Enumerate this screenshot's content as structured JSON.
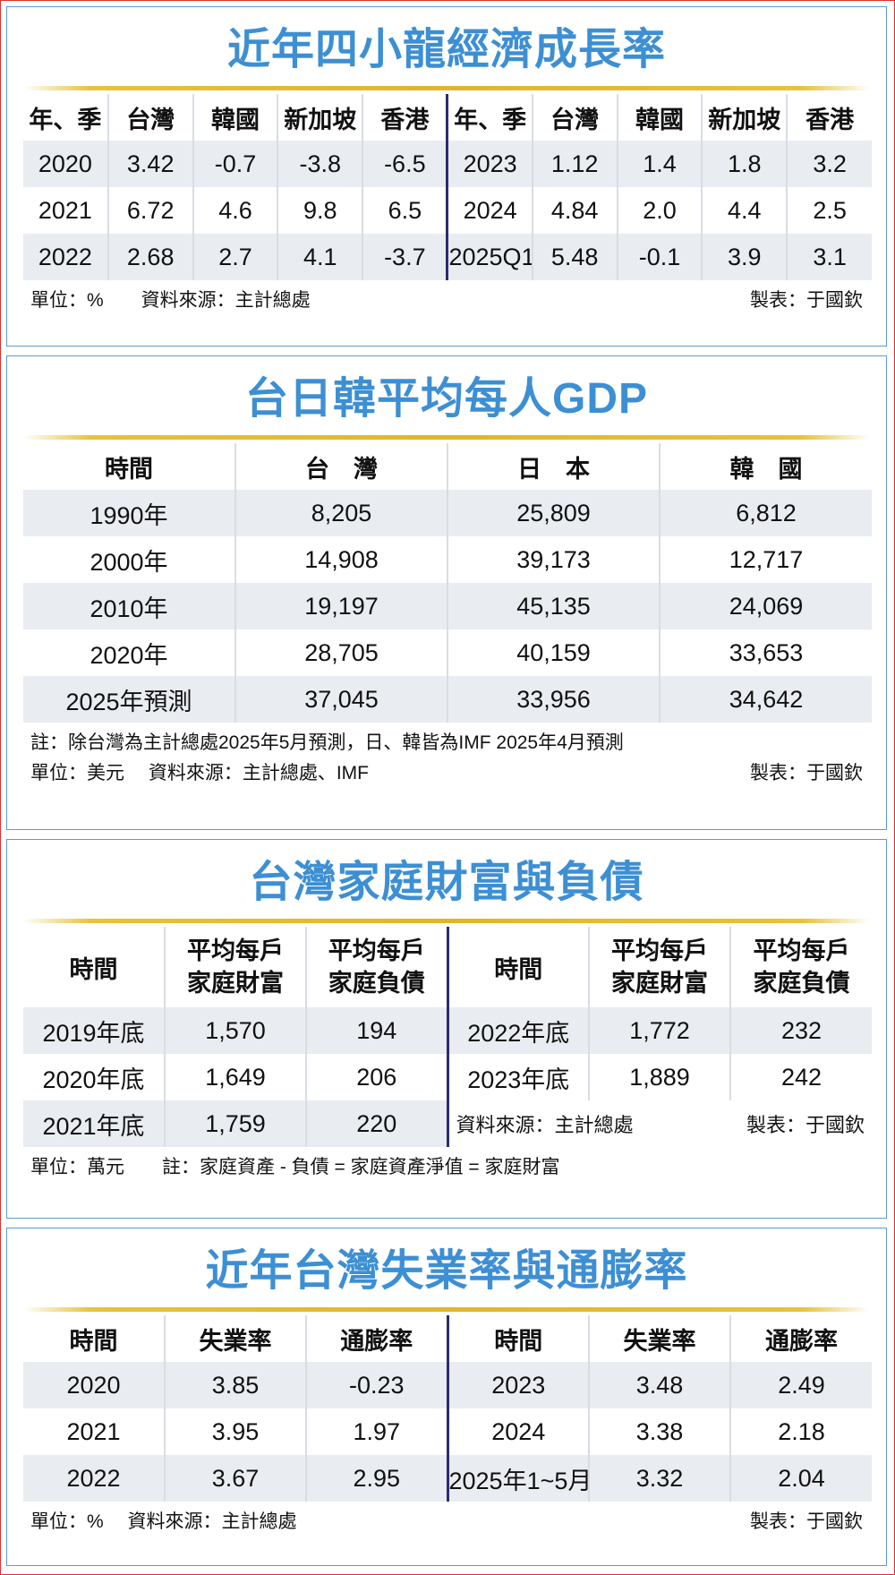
{
  "panels": [
    {
      "title": "近年四小龍經濟成長率",
      "header": [
        "年、季",
        "台灣",
        "韓國",
        "新加坡",
        "香港",
        "年、季",
        "台灣",
        "韓國",
        "新加坡",
        "香港"
      ],
      "rows": [
        [
          "2020",
          "3.42",
          "-0.7",
          "-3.8",
          "-6.5",
          "2023",
          "1.12",
          "1.4",
          "1.8",
          "3.2"
        ],
        [
          "2021",
          "6.72",
          "4.6",
          "9.8",
          "6.5",
          "2024",
          "4.84",
          "2.0",
          "4.4",
          "2.5"
        ],
        [
          "2022",
          "2.68",
          "2.7",
          "4.1",
          "-3.7",
          "2025Q1",
          "5.48",
          "-0.1",
          "3.9",
          "3.1"
        ]
      ],
      "footer": "單位：%　　資料來源：主計總處",
      "credit": "製表：于國欽"
    },
    {
      "title": "台日韓平均每人GDP",
      "header": [
        "時間",
        "台　灣",
        "日　本",
        "韓　國"
      ],
      "rows": [
        [
          "1990年",
          "8,205",
          "25,809",
          "6,812"
        ],
        [
          "2000年",
          "14,908",
          "39,173",
          "12,717"
        ],
        [
          "2010年",
          "19,197",
          "45,135",
          "24,069"
        ],
        [
          "2020年",
          "28,705",
          "40,159",
          "33,653"
        ],
        [
          "2025年預測",
          "37,045",
          "33,956",
          "34,642"
        ]
      ],
      "note": "註：除台灣為主計總處2025年5月預測，日、韓皆為IMF 2025年4月預測",
      "footer": "單位：美元　 資料來源：主計總處、IMF",
      "credit": "製表：于國欽"
    },
    {
      "title": "台灣家庭財富與負債",
      "header": [
        "時間",
        [
          "平均每戶",
          "家庭財富"
        ],
        [
          "平均每戶",
          "家庭負債"
        ],
        "時間",
        [
          "平均每戶",
          "家庭財富"
        ],
        [
          "平均每戶",
          "家庭負債"
        ]
      ],
      "rows": [
        [
          "2019年底",
          "1,570",
          "194",
          "2022年底",
          "1,772",
          "232"
        ],
        [
          "2020年底",
          "1,649",
          "206",
          "2023年底",
          "1,889",
          "242"
        ],
        [
          "2021年底",
          "1,759",
          "220"
        ]
      ],
      "inline_source": "資料來源：主計總處",
      "inline_credit": "製表：于國欽",
      "footer": "單位：萬元　　註：家庭資產 - 負債 = 家庭資產淨值 = 家庭財富"
    },
    {
      "title": "近年台灣失業率與通膨率",
      "header": [
        "時間",
        "失業率",
        "通膨率",
        "時間",
        "失業率",
        "通膨率"
      ],
      "rows": [
        [
          "2020",
          "3.85",
          "-0.23",
          "2023",
          "3.48",
          "2.49"
        ],
        [
          "2021",
          "3.95",
          "1.97",
          "2024",
          "3.38",
          "2.18"
        ],
        [
          "2022",
          "3.67",
          "2.95",
          "2025年1~5月",
          "3.32",
          "2.04"
        ]
      ],
      "footer": "單位：%　 資料來源：主計總處",
      "credit": "製表：于國欽"
    }
  ]
}
